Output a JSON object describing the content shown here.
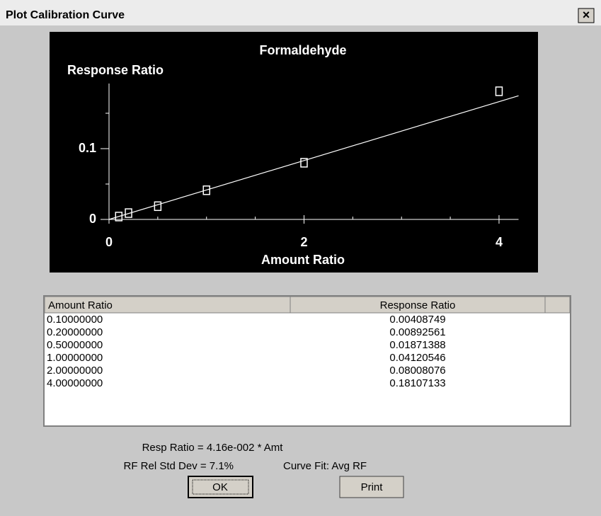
{
  "window": {
    "title": "Plot Calibration Curve",
    "close": "×"
  },
  "chart_data": {
    "type": "scatter",
    "title": "Formaldehyde",
    "y_label": "Response Ratio",
    "x_label": "Amount Ratio",
    "x": [
      0.1,
      0.2,
      0.5,
      1.0,
      2.0,
      4.0
    ],
    "values": [
      0.00408749,
      0.00892561,
      0.01871388,
      0.04120546,
      0.08008076,
      0.18107133
    ],
    "fit_slope": 0.0416,
    "xlim": [
      0,
      4.2
    ],
    "ylim": [
      0,
      0.192
    ],
    "xticks": [
      0,
      2,
      4
    ],
    "yticks": [
      0,
      0.1
    ],
    "x_minor_ticks": [
      0.5,
      1,
      1.5,
      2.5,
      3,
      3.5
    ],
    "y_minor_ticks": [
      0.05,
      0.15
    ],
    "color": "#ffffff",
    "background": "#000000"
  },
  "table": {
    "columns": [
      "Amount Ratio",
      "Response Ratio"
    ],
    "rows": [
      [
        "0.10000000",
        "0.00408749"
      ],
      [
        "0.20000000",
        "0.00892561"
      ],
      [
        "0.50000000",
        "0.01871388"
      ],
      [
        "1.00000000",
        "0.04120546"
      ],
      [
        "2.00000000",
        "0.08008076"
      ],
      [
        "4.00000000",
        "0.18107133"
      ]
    ]
  },
  "footer": {
    "equation": "Resp Ratio = 4.16e-002 * Amt",
    "rsd": "RF Rel Std Dev = 7.1%",
    "curve_fit": "Curve Fit: Avg RF"
  },
  "buttons": [
    "OK",
    "Print"
  ]
}
